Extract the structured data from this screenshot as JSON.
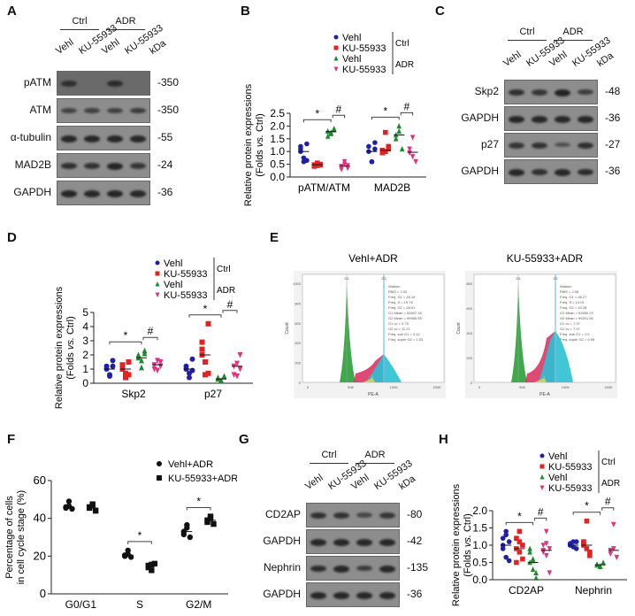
{
  "panels": {
    "A": {
      "label": "A",
      "groups": [
        "Ctrl",
        "ADR"
      ],
      "lanes": [
        "Vehl",
        "KU-55933",
        "Vehl",
        "KU-55933"
      ],
      "kda_label": "kDa",
      "rows": [
        {
          "name": "pATM",
          "kda": "-350",
          "intensity": [
            0.7,
            0.0,
            0.8,
            0.05
          ]
        },
        {
          "name": "ATM",
          "kda": "-350",
          "intensity": [
            0.5,
            0.55,
            0.55,
            0.6
          ]
        },
        {
          "name": "α-tubulin",
          "kda": "-55",
          "intensity": [
            0.9,
            0.9,
            0.9,
            0.9
          ]
        },
        {
          "name": "MAD2B",
          "kda": "-24",
          "intensity": [
            0.8,
            0.75,
            0.95,
            0.7
          ]
        },
        {
          "name": "GAPDH",
          "kda": "-36",
          "intensity": [
            0.95,
            0.9,
            0.95,
            0.9
          ]
        }
      ]
    },
    "C": {
      "label": "C",
      "groups": [
        "Ctrl",
        "ADR"
      ],
      "lanes": [
        "Vehl",
        "KU-55933",
        "Vehl",
        "KU-55933"
      ],
      "kda_label": "kDa",
      "rows": [
        {
          "name": "Skp2",
          "kda": "-48",
          "intensity": [
            0.8,
            0.7,
            1.0,
            0.6
          ]
        },
        {
          "name": "GAPDH",
          "kda": "-36",
          "intensity": [
            0.9,
            0.9,
            0.9,
            0.9
          ]
        },
        {
          "name": "p27",
          "kda": "-27",
          "intensity": [
            0.7,
            0.75,
            0.3,
            0.8
          ]
        },
        {
          "name": "GAPDH",
          "kda": "-36",
          "intensity": [
            0.9,
            0.8,
            0.9,
            0.85
          ]
        }
      ]
    },
    "E": {
      "label": "E",
      "plots": [
        {
          "title": "Vehl+ADR",
          "xlabel": "PE-A",
          "ylabel": "Count",
          "yticks": [
            "0",
            "200",
            "400",
            "600",
            "800",
            "1000"
          ],
          "xticks": [
            "0",
            "50K",
            "100K",
            "150K"
          ],
          "gates": [
            "G1",
            "G2"
          ],
          "stats": [
            "Watson",
            "RMS = 2.02",
            "Freq. G1 = 46.19",
            "Freq. S = 19.76",
            "Freq. G2 = 28.91",
            "G1 Mean = 52847.18",
            "G2 Mean = 99985.95",
            "G1 cv = 4.75",
            "G2 cv = 11.21",
            "Freq. sub G1 = 3.12",
            "Freq. super G2 = 1.03"
          ]
        },
        {
          "title": "KU-55933+ADR",
          "xlabel": "PE-A",
          "ylabel": "Count",
          "yticks": [
            "0",
            "200",
            "400",
            "600",
            "800"
          ],
          "xticks": [
            "0",
            "50K",
            "100K",
            "150K"
          ],
          "gates": [
            "G1",
            "G2"
          ],
          "stats": [
            "Watson",
            "RMS = 2.08",
            "Freq. G1 = 46.27",
            "Freq. S = 14.01",
            "Freq. G2 = 40.28",
            "G1 Mean = 51690.23",
            "G2 Mean = 99201.06",
            "G1 cv = 7.37",
            "G2 cv = 7.97",
            "Freq. sub G1 = 1.0",
            "Freq. super G2 = 0.95"
          ]
        }
      ]
    },
    "G": {
      "label": "G",
      "groups": [
        "Ctrl",
        "ADR"
      ],
      "lanes": [
        "Vehl",
        "KU-55933",
        "Vehl",
        "KU-55933"
      ],
      "kda_label": "kDa",
      "rows": [
        {
          "name": "CD2AP",
          "kda": "-80",
          "intensity": [
            0.8,
            0.75,
            0.45,
            0.7
          ]
        },
        {
          "name": "GAPDH",
          "kda": "-42",
          "intensity": [
            0.9,
            0.9,
            0.9,
            0.9
          ]
        },
        {
          "name": "Nephrin",
          "kda": "-135",
          "intensity": [
            0.85,
            0.9,
            0.6,
            0.9
          ]
        },
        {
          "name": "GAPDH",
          "kda": "-36",
          "intensity": [
            0.9,
            0.9,
            0.9,
            0.9
          ]
        }
      ]
    }
  },
  "legend4": {
    "items": [
      {
        "label": "Vehl",
        "color": "#1f1fa8",
        "marker": "circle"
      },
      {
        "label": "KU-55933",
        "color": "#e52222",
        "marker": "square"
      },
      {
        "label": "Vehl",
        "color": "#1e8a2e",
        "marker": "triangle"
      },
      {
        "label": "KU-55933",
        "color": "#e0337f",
        "marker": "triangle-down"
      }
    ],
    "groups": [
      "Ctrl",
      "ADR"
    ]
  },
  "chart_data": [
    {
      "panel": "B",
      "type": "scatter",
      "ylabel": "Relative protein expressions (Folds vs. Ctrl)",
      "ylim": [
        0,
        2.5
      ],
      "yticks": [
        0.0,
        0.5,
        1.0,
        1.5,
        2.0,
        2.5
      ],
      "categories": [
        "pATM/ATM",
        "MAD2B"
      ],
      "series": [
        {
          "name": "Vehl Ctrl",
          "values": [
            [
              1.0,
              0.6,
              1.3,
              1.2,
              0.75,
              0.65,
              1.1
            ],
            [
              1.0,
              0.6,
              1.35,
              1.2,
              0.6,
              1.1
            ]
          ]
        },
        {
          "name": "KU-55933 Ctrl",
          "values": [
            [
              0.48,
              0.45,
              0.5,
              0.42,
              0.55,
              0.47
            ],
            [
              1.05,
              1.75,
              1.2,
              0.95,
              1.0,
              1.1
            ]
          ]
        },
        {
          "name": "Vehl ADR",
          "values": [
            [
              1.8,
              1.75,
              1.85,
              1.6,
              1.7,
              1.9
            ],
            [
              1.65,
              2.0,
              1.1,
              1.5,
              1.8
            ]
          ]
        },
        {
          "name": "KU-55933 ADR",
          "values": [
            [
              0.42,
              0.6,
              0.35,
              0.3,
              0.5,
              0.45
            ],
            [
              0.95,
              1.55,
              0.6,
              1.1,
              0.8
            ]
          ]
        }
      ],
      "means": [
        [
          1.0,
          0.48,
          1.78,
          0.43
        ],
        [
          1.0,
          1.05,
          1.65,
          0.97
        ]
      ],
      "annotations": [
        {
          "category": "pATM/ATM",
          "marks": [
            "*",
            "#"
          ]
        },
        {
          "category": "MAD2B",
          "marks": [
            "*",
            "#"
          ]
        }
      ]
    },
    {
      "panel": "D",
      "type": "scatter",
      "ylabel": "Relative protein expressions (Folds vs. Ctrl)",
      "ylim": [
        0,
        5
      ],
      "yticks": [
        0,
        1,
        2,
        3,
        4,
        5
      ],
      "categories": [
        "Skp2",
        "p27"
      ],
      "series": [
        {
          "name": "Vehl Ctrl",
          "values": [
            [
              1.0,
              0.6,
              1.6,
              1.2,
              0.5,
              1.2
            ],
            [
              1.0,
              0.4,
              1.7,
              1.2,
              0.7,
              0.9
            ]
          ]
        },
        {
          "name": "KU-55933 Ctrl",
          "values": [
            [
              1.0,
              0.4,
              1.5,
              1.3,
              0.7,
              0.6,
              1.1
            ],
            [
              2.0,
              0.6,
              4.2,
              2.9,
              1.5,
              0.7,
              2.4
            ]
          ]
        },
        {
          "name": "Vehl ADR",
          "values": [
            [
              1.8,
              1.1,
              2.3,
              2.0,
              1.6,
              2.1
            ],
            [
              0.3,
              0.15,
              0.5,
              0.4,
              0.2
            ]
          ]
        },
        {
          "name": "KU-55933 ADR",
          "values": [
            [
              1.3,
              0.9,
              1.5,
              1.0,
              1.6,
              1.2
            ],
            [
              1.2,
              0.5,
              2.0,
              0.6,
              1.4,
              1.0
            ]
          ]
        }
      ],
      "means": [
        [
          1.0,
          1.0,
          1.8,
          1.3
        ],
        [
          1.0,
          2.0,
          0.3,
          1.2
        ]
      ],
      "annotations": [
        {
          "category": "Skp2",
          "marks": [
            "*",
            "#"
          ]
        },
        {
          "category": "p27",
          "marks": [
            "*",
            "#"
          ]
        }
      ]
    },
    {
      "panel": "F",
      "type": "scatter",
      "ylabel": "Percentage of cells in cell cycle stage (%)",
      "ylim": [
        0,
        60
      ],
      "yticks": [
        0,
        20,
        40,
        60
      ],
      "categories": [
        "G0/G1",
        "S",
        "G2/M"
      ],
      "legend": [
        "Vehl+ADR",
        "KU-55933+ADR"
      ],
      "series": [
        {
          "name": "Vehl+ADR",
          "marker": "circle",
          "values": [
            [
              46,
              49,
              45,
              45.5,
              46.5
            ],
            [
              20.5,
              23,
              19.5,
              20,
              21
            ],
            [
              33,
              36.5,
              30,
              31.5,
              35
            ]
          ]
        },
        {
          "name": "KU-55933+ADR",
          "marker": "square",
          "values": [
            [
              45.5,
              47.5,
              44,
              46,
              47
            ],
            [
              15,
              12.5,
              16,
              14,
              15.5
            ],
            [
              39,
              41,
              37,
              38,
              40
            ]
          ]
        }
      ],
      "means": [
        [
          46,
          45.5
        ],
        [
          20.5,
          15
        ],
        [
          33,
          39
        ]
      ],
      "annotations": [
        {
          "category": "S",
          "marks": [
            "*"
          ]
        },
        {
          "category": "G2/M",
          "marks": [
            "*"
          ]
        }
      ]
    },
    {
      "panel": "H",
      "type": "scatter",
      "ylabel": "Relative protein expressions (Folds vs. Ctrl)",
      "ylim": [
        0,
        2.0
      ],
      "yticks": [
        0.0,
        0.5,
        1.0,
        1.5,
        2.0
      ],
      "categories": [
        "CD2AP",
        "Nephrin"
      ],
      "series": [
        {
          "name": "Vehl Ctrl",
          "values": [
            [
              1.0,
              1.4,
              0.55,
              1.2,
              0.65,
              1.1,
              0.9,
              1.3
            ],
            [
              1.05,
              1.1,
              0.9,
              1.0,
              0.95,
              1.1,
              1.0
            ]
          ]
        },
        {
          "name": "KU-55933 Ctrl",
          "values": [
            [
              0.9,
              1.4,
              0.6,
              1.2,
              0.8,
              1.0,
              0.5,
              1.1
            ],
            [
              1.0,
              1.7,
              0.7,
              1.1,
              0.9,
              0.8,
              1.05
            ]
          ]
        },
        {
          "name": "Vehl ADR",
          "values": [
            [
              0.5,
              0.3,
              0.05,
              0.8,
              0.6,
              0.2,
              0.9,
              0.55
            ],
            [
              0.45,
              0.4,
              0.5,
              0.42,
              0.38
            ]
          ]
        },
        {
          "name": "KU-55933 ADR",
          "values": [
            [
              0.85,
              1.4,
              0.2,
              1.0,
              0.7,
              0.9,
              0.8,
              1.05
            ],
            [
              0.85,
              1.6,
              0.65,
              0.75,
              0.9
            ]
          ]
        }
      ],
      "means": [
        [
          1.0,
          0.9,
          0.5,
          0.85
        ],
        [
          1.0,
          1.0,
          0.43,
          0.85
        ]
      ],
      "annotations": [
        {
          "category": "CD2AP",
          "marks": [
            "*",
            "#"
          ]
        },
        {
          "category": "Nephrin",
          "marks": [
            "*",
            "#"
          ]
        }
      ]
    }
  ]
}
